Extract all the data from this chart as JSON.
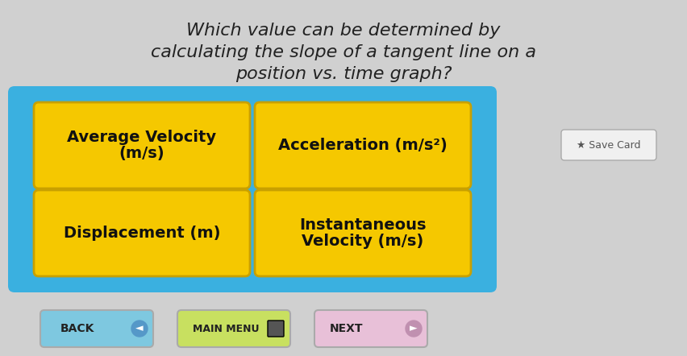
{
  "background_color": "#d0d0d0",
  "title_lines": [
    "Which value can be determined by",
    "calculating the slope of a tangent line on a",
    "position vs. time graph?"
  ],
  "title_fontsize": 16,
  "title_color": "#222222",
  "panel_bg": "#3ab0e0",
  "panel_border": "#3ab0e0",
  "button_bg": "#f5c800",
  "button_border": "#c8a000",
  "button_text_color": "#111111",
  "buttons": [
    {
      "label": "Average Velocity\n(m/s)",
      "row": 0,
      "col": 0
    },
    {
      "label": "Acceleration (m/s²)",
      "row": 0,
      "col": 1
    },
    {
      "label": "Displacement (m)",
      "row": 1,
      "col": 0
    },
    {
      "label": "Instantaneous\nVelocity (m/s)",
      "row": 1,
      "col": 1
    }
  ],
  "nav_buttons": [
    {
      "label": "BACK",
      "color": "#7ec8e0",
      "text_color": "#222222"
    },
    {
      "label": "MAIN MENU",
      "color": "#c8e060",
      "text_color": "#222222"
    },
    {
      "label": "NEXT►",
      "color": "#e8c0d8",
      "text_color": "#222222"
    }
  ],
  "save_card_label": "★ Save Card",
  "save_card_color": "#f0f0f0",
  "save_card_text_color": "#555555"
}
